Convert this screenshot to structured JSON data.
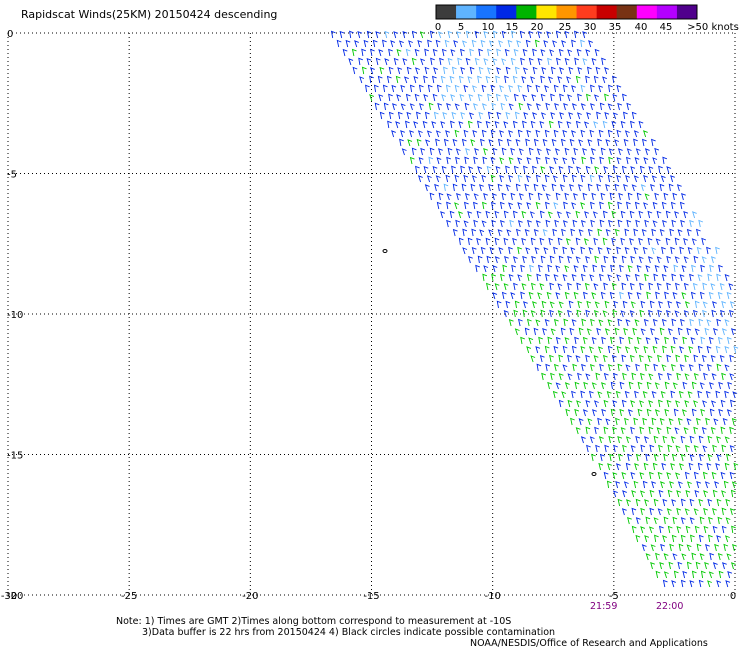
{
  "title": "Rapidscat Winds(25KM) 20150424 descending",
  "legend": {
    "labels": [
      "0",
      "5",
      "10",
      "15",
      "20",
      "25",
      "30",
      "35",
      "40",
      "45",
      ">50 knots"
    ],
    "colors": [
      "#3c3c3c",
      "#5fb4ff",
      "#1874ff",
      "#0028e6",
      "#00b400",
      "#ffe600",
      "#ff9600",
      "#ff3c1e",
      "#c80000",
      "#783214",
      "#ff00ff",
      "#b400ff",
      "#50008c"
    ]
  },
  "axes": {
    "x_ticks": [
      "-30",
      "-25",
      "-20",
      "-15",
      "-10",
      "-5",
      "0"
    ],
    "y_ticks": [
      "0",
      "-5",
      "-10",
      "-15",
      "-20"
    ],
    "x_range": [
      -30,
      0
    ],
    "y_range": [
      -20,
      0
    ],
    "grid": "dotted"
  },
  "times": [
    "21:59",
    "22:00"
  ],
  "notes": {
    "line1": "Note: 1) Times are GMT 2)Times along bottom correspond to measurement at -10S",
    "line2": "3)Data buffer is 22 hrs from 20150424 4) Black circles indicate possible contamination",
    "credit": "NOAA/NESDIS/Office of Research and Applications"
  },
  "swath": {
    "description_free": true,
    "dominant_speed_knots": "10-20",
    "barb_colors": {
      "light": "#5fb4ff",
      "blue": "#0028e6",
      "green": "#00c800"
    }
  }
}
